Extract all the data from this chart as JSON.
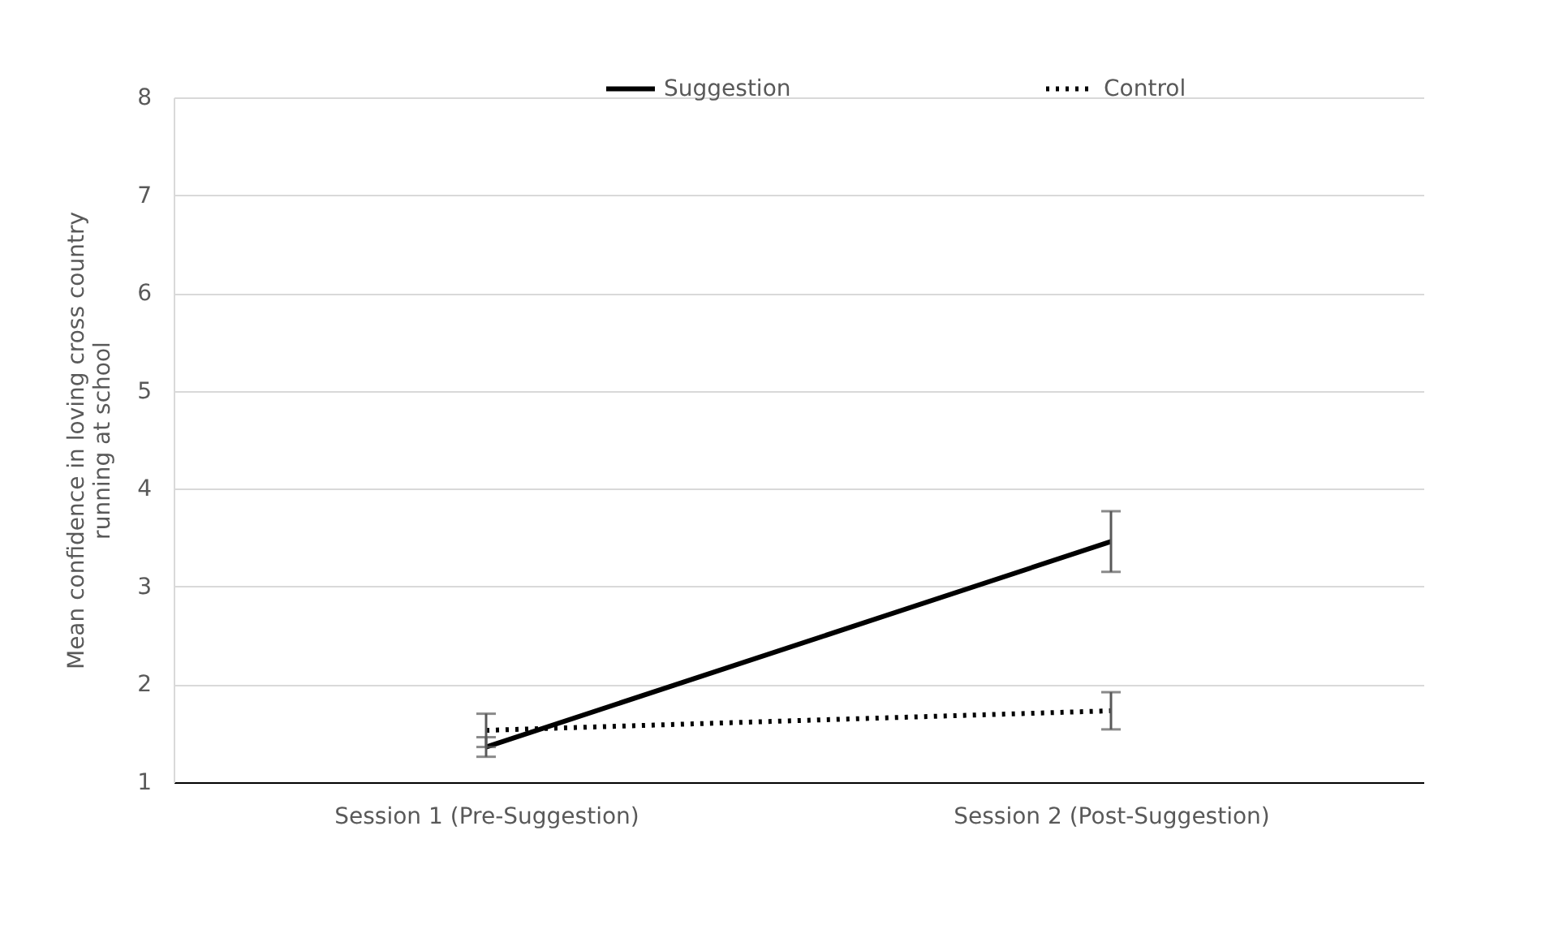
{
  "chart_data": {
    "type": "line",
    "ylabel": "Mean confidence in loving cross country running at school",
    "categories": [
      "Session 1 (Pre-Suggestion)",
      "Session 2 (Post-Suggestion)"
    ],
    "ylim": [
      1,
      8
    ],
    "yticks": [
      1,
      2,
      3,
      4,
      5,
      6,
      7,
      8
    ],
    "grid": "y",
    "legend": "top",
    "series": [
      {
        "name": "Suggestion",
        "color": "#000000",
        "line_style": "solid",
        "values": [
          1.36,
          3.46
        ],
        "errors": [
          0.1,
          0.31
        ]
      },
      {
        "name": "Control",
        "color": "#000000",
        "line_style": "dotted",
        "values": [
          1.53,
          1.73
        ],
        "errors": [
          0.17,
          0.19
        ]
      }
    ]
  }
}
